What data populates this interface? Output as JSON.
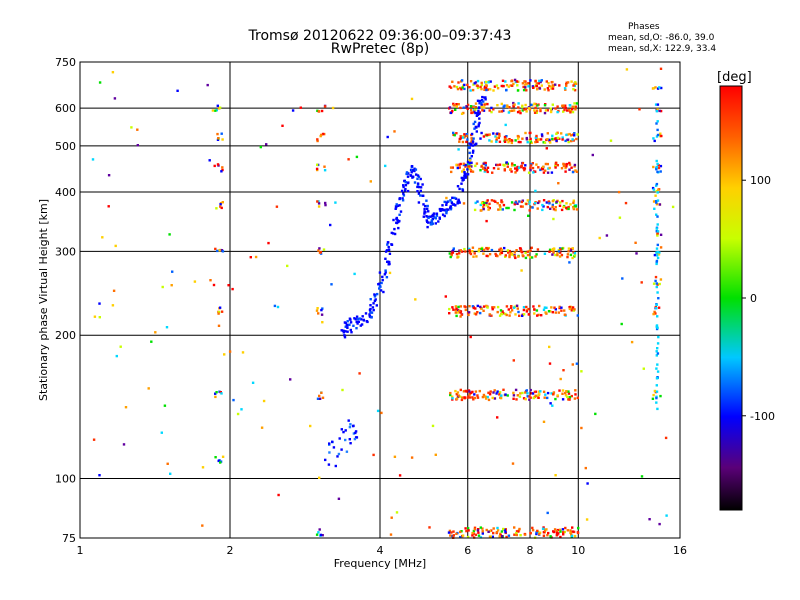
{
  "chart_data": {
    "type": "scatter",
    "title": "Tromsø 20120622 09:36:00–09:37:43",
    "subtitle": "RwPretec (8p)",
    "xlabel": "Frequency [MHz]",
    "ylabel": "Stationary phase Virtual Height [km]",
    "x_scale": "log",
    "y_scale": "log",
    "xlim": [
      1,
      16
    ],
    "ylim": [
      75,
      750
    ],
    "x_ticks": [
      1,
      2,
      4,
      6,
      8,
      10,
      16
    ],
    "y_ticks": [
      75,
      100,
      200,
      300,
      400,
      500,
      600,
      750
    ],
    "grid": true,
    "phase_stats": {
      "title": "Phases",
      "o_mode": "mean, sd,O: -86.0, 39.0",
      "x_mode": "mean, sd,X: 122.9, 33.4"
    },
    "colorbar": {
      "label": "[deg]",
      "ticks": [
        100,
        0,
        -100
      ],
      "range": [
        -180,
        180
      ]
    },
    "trace": [
      [
        3.35,
        200
      ],
      [
        3.45,
        207
      ],
      [
        3.55,
        213
      ],
      [
        3.7,
        218
      ],
      [
        3.85,
        226
      ],
      [
        3.95,
        240
      ],
      [
        4.05,
        262
      ],
      [
        4.15,
        295
      ],
      [
        4.25,
        330
      ],
      [
        4.35,
        365
      ],
      [
        4.45,
        400
      ],
      [
        4.55,
        430
      ],
      [
        4.65,
        450
      ],
      [
        4.75,
        430
      ],
      [
        4.85,
        390
      ],
      [
        4.95,
        360
      ],
      [
        5.05,
        345
      ],
      [
        5.2,
        350
      ],
      [
        5.35,
        365
      ],
      [
        5.5,
        375
      ],
      [
        5.65,
        385
      ],
      [
        5.8,
        400
      ],
      [
        5.95,
        440
      ],
      [
        6.05,
        470
      ],
      [
        6.15,
        510
      ],
      [
        6.25,
        560
      ],
      [
        6.35,
        600
      ],
      [
        6.45,
        640
      ]
    ],
    "bands": [
      {
        "h": 670,
        "f": [
          5.5,
          10
        ]
      },
      {
        "h": 600,
        "f": [
          5.5,
          10
        ]
      },
      {
        "h": 520,
        "f": [
          5.5,
          10
        ]
      },
      {
        "h": 450,
        "f": [
          5.5,
          10
        ]
      },
      {
        "h": 375,
        "f": [
          6.2,
          10
        ]
      },
      {
        "h": 298,
        "f": [
          5.5,
          10
        ]
      },
      {
        "h": 225,
        "f": [
          5.5,
          10
        ]
      },
      {
        "h": 150,
        "f": [
          5.5,
          10
        ]
      },
      {
        "h": 77,
        "f": [
          5.5,
          10
        ]
      }
    ],
    "scatter_columns": [
      {
        "f": 3.05,
        "h": [
          600,
          520,
          450,
          375,
          300,
          225,
          150,
          77
        ]
      },
      {
        "f": 14.4,
        "h": [
          670,
          600,
          520,
          450,
          400,
          375,
          330,
          300,
          260,
          225,
          150
        ]
      },
      {
        "f": 1.9,
        "h": [
          600,
          520,
          450,
          375,
          300,
          225,
          150,
          110
        ]
      }
    ]
  }
}
